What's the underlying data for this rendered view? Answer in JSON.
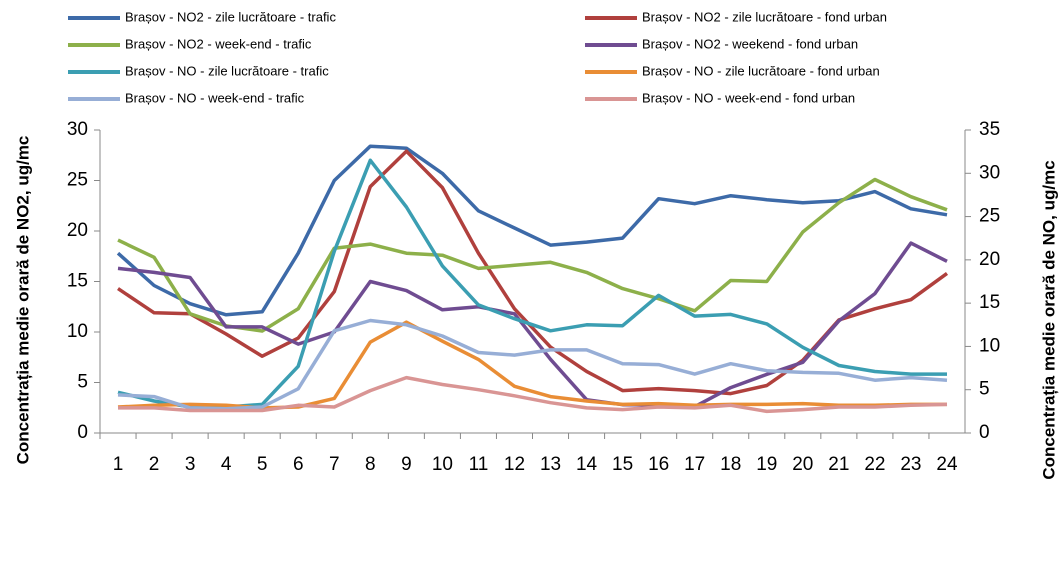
{
  "chart_data": {
    "type": "line",
    "categories": [
      "1",
      "2",
      "3",
      "4",
      "5",
      "6",
      "7",
      "8",
      "9",
      "10",
      "11",
      "12",
      "13",
      "14",
      "15",
      "16",
      "17",
      "18",
      "19",
      "20",
      "21",
      "22",
      "23",
      "24"
    ],
    "ylabel": "Concentrația medie orară de NO2, ug/mc",
    "y2label": "Concentrația medie orară de NO, ug/mc",
    "ylim": [
      0,
      30
    ],
    "yticks": [
      0,
      5,
      10,
      15,
      20,
      25,
      30
    ],
    "y2lim": [
      0,
      35
    ],
    "y2ticks": [
      0,
      5,
      10,
      15,
      20,
      25,
      30,
      35
    ],
    "grid": false,
    "series": [
      {
        "name": "Brașov - NO2 - zile lucrătoare - trafic",
        "color": "#3d6aa8",
        "values": [
          17.8,
          14.6,
          12.8,
          11.7,
          12,
          17.8,
          25,
          28.4,
          28.2,
          25.7,
          22,
          20.3,
          18.6,
          18.9,
          19.3,
          23.2,
          22.7,
          23.5,
          23.1,
          22.8,
          23,
          23.9,
          22.2,
          21.6
        ]
      },
      {
        "name": "Brașov - NO2 - zile lucrătoare - fond urban",
        "color": "#b0403d",
        "values": [
          14.3,
          11.9,
          11.8,
          9.8,
          7.6,
          9.4,
          14,
          24.4,
          27.9,
          24.3,
          17.8,
          12.3,
          8.5,
          6.1,
          4.2,
          4.4,
          4.2,
          3.9,
          4.7,
          7.2,
          11.2,
          12.3,
          13.2,
          15.8
        ]
      },
      {
        "name": "Brașov - NO2 - week-end - trafic",
        "color": "#8db04a",
        "values": [
          19.1,
          17.4,
          11.8,
          10.6,
          10.1,
          12.3,
          18.3,
          18.7,
          17.8,
          17.6,
          16.3,
          16.6,
          16.9,
          15.9,
          14.3,
          13.3,
          12.1,
          15.1,
          15,
          19.9,
          22.8,
          25.1,
          23.4,
          22.1
        ]
      },
      {
        "name": "Brașov - NO2 - weekend - fond urban",
        "color": "#6f4c91",
        "values": [
          16.3,
          15.9,
          15.4,
          10.5,
          10.5,
          8.8,
          10,
          15,
          14.1,
          12.2,
          12.5,
          11.8,
          7.3,
          3.3,
          2.8,
          2.8,
          2.6,
          4.5,
          5.8,
          7,
          11.1,
          13.8,
          18.8,
          17
        ]
      },
      {
        "name": "Brașov - NO - zile lucrătoare - trafic",
        "color": "#3b9eb2",
        "axis": "y2",
        "values": [
          4.7,
          3.7,
          3.0,
          3.0,
          3.3,
          7.7,
          21,
          31.5,
          26.1,
          19.3,
          14.8,
          13.2,
          11.8,
          12.5,
          12.4,
          15.9,
          13.5,
          13.7,
          12.6,
          9.9,
          7.8,
          7.1,
          6.8,
          6.8
        ]
      },
      {
        "name": "Brașov - NO - zile lucrătoare - fond urban",
        "color": "#e98d35",
        "axis": "y2",
        "values": [
          3.0,
          3.2,
          3.3,
          3.2,
          2.9,
          3.0,
          4.0,
          10.5,
          12.8,
          10.6,
          8.5,
          5.4,
          4.2,
          3.7,
          3.3,
          3.4,
          3.2,
          3.3,
          3.3,
          3.4,
          3.2,
          3.2,
          3.3,
          3.3
        ]
      },
      {
        "name": "Brașov - NO - week-end - trafic",
        "color": "#97aed6",
        "axis": "y2",
        "values": [
          4.4,
          4.2,
          2.9,
          2.8,
          3.0,
          5.1,
          11.8,
          13,
          12.5,
          11.2,
          9.3,
          9,
          9.6,
          9.6,
          8,
          7.9,
          6.8,
          8,
          7.2,
          7,
          6.9,
          6.1,
          6.4,
          6.1
        ]
      },
      {
        "name": "Brașov - NO - week-end - fond urban",
        "color": "#d99594",
        "axis": "y2",
        "values": [
          2.9,
          2.9,
          2.6,
          2.6,
          2.6,
          3.2,
          3.0,
          4.9,
          6.4,
          5.6,
          5,
          4.3,
          3.5,
          2.9,
          2.7,
          3,
          2.9,
          3.2,
          2.5,
          2.7,
          3,
          3,
          3.2,
          3.3
        ]
      }
    ]
  }
}
